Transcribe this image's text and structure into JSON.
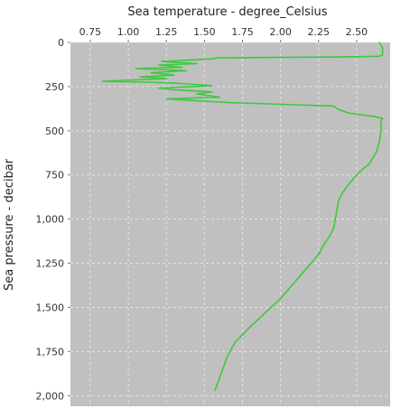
{
  "colors": {
    "plot_background": "#c0c0c0",
    "grid": "#e4e4e4",
    "series_line": "#3ec93e",
    "text": "#333333"
  },
  "chart_data": {
    "type": "line",
    "title": "",
    "xlabel": "Sea temperature - degree_Celsius",
    "ylabel": "Sea pressure - decibar",
    "xaxis_position": "top",
    "yaxis_inverted": true,
    "grid": true,
    "xlim": [
      0.62,
      2.72
    ],
    "ylim": [
      0,
      2060
    ],
    "x_ticks": [
      0.75,
      1.0,
      1.25,
      1.5,
      1.75,
      2.0,
      2.25,
      2.5
    ],
    "x_tick_labels": [
      "0.75",
      "1.00",
      "1.25",
      "1.50",
      "1.75",
      "2.00",
      "2.25",
      "2.50"
    ],
    "y_ticks": [
      0,
      250,
      500,
      750,
      1000,
      1250,
      1500,
      1750,
      2000
    ],
    "y_tick_labels": [
      "0",
      "250",
      "500",
      "750",
      "1,000",
      "1,250",
      "1,500",
      "1,750",
      "2,000"
    ],
    "series": [
      {
        "x": [
          2.65,
          2.67,
          2.67,
          2.65,
          2.55,
          2.3,
          1.95,
          1.58,
          1.55,
          1.4,
          1.22,
          1.45,
          1.2,
          1.35,
          1.05,
          1.38,
          1.15,
          1.3,
          1.08,
          1.25,
          0.83,
          1.12,
          1.3,
          1.55,
          1.2,
          1.3,
          1.55,
          1.45,
          1.6,
          1.25,
          1.45,
          1.65,
          2.0,
          2.35,
          2.38,
          2.45,
          2.62,
          2.67,
          2.66,
          2.66,
          2.65,
          2.63,
          2.58,
          2.55,
          2.5,
          2.45,
          2.4,
          2.38,
          2.37,
          2.36,
          2.35,
          2.32,
          2.28,
          2.25,
          2.2,
          2.15,
          2.1,
          2.05,
          2.0,
          1.9,
          1.8,
          1.7,
          1.65,
          1.57
        ],
        "y": [
          0,
          30,
          70,
          78,
          80,
          83,
          85,
          88,
          93,
          100,
          108,
          120,
          128,
          140,
          148,
          160,
          172,
          185,
          195,
          205,
          220,
          225,
          230,
          245,
          258,
          268,
          280,
          292,
          310,
          320,
          330,
          340,
          350,
          360,
          380,
          400,
          420,
          430,
          450,
          500,
          560,
          620,
          690,
          710,
          750,
          800,
          860,
          900,
          950,
          1000,
          1050,
          1100,
          1150,
          1200,
          1250,
          1300,
          1350,
          1400,
          1450,
          1530,
          1610,
          1700,
          1780,
          1970
        ]
      }
    ]
  }
}
